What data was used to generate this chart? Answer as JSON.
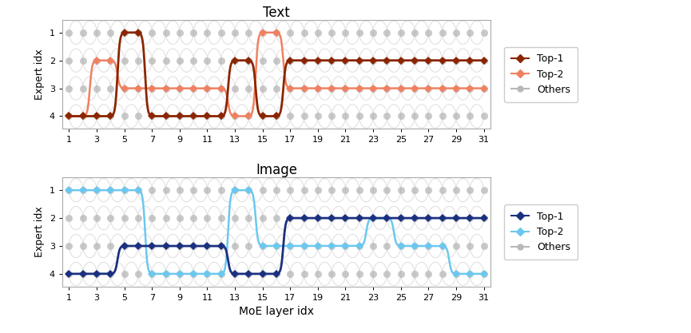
{
  "layers": [
    1,
    2,
    3,
    4,
    5,
    6,
    7,
    8,
    9,
    10,
    11,
    12,
    13,
    14,
    15,
    16,
    17,
    18,
    19,
    20,
    21,
    22,
    23,
    24,
    25,
    26,
    27,
    28,
    29,
    30,
    31
  ],
  "text_top1": [
    4,
    4,
    4,
    4,
    1,
    1,
    4,
    4,
    4,
    4,
    4,
    4,
    2,
    2,
    4,
    4,
    2,
    2,
    2,
    2,
    2,
    2,
    2,
    2,
    2,
    2,
    2,
    2,
    2,
    2,
    2
  ],
  "text_top2": [
    4,
    4,
    2,
    2,
    3,
    3,
    3,
    3,
    3,
    3,
    3,
    3,
    4,
    4,
    1,
    1,
    3,
    3,
    3,
    3,
    3,
    3,
    3,
    3,
    3,
    3,
    3,
    3,
    3,
    3,
    3
  ],
  "img_top1": [
    4,
    4,
    4,
    4,
    3,
    3,
    3,
    3,
    3,
    3,
    3,
    3,
    4,
    4,
    4,
    4,
    2,
    2,
    2,
    2,
    2,
    2,
    2,
    2,
    2,
    2,
    2,
    2,
    2,
    2,
    2
  ],
  "img_top2": [
    1,
    1,
    1,
    1,
    1,
    1,
    4,
    4,
    4,
    4,
    4,
    4,
    1,
    1,
    3,
    3,
    3,
    3,
    3,
    3,
    3,
    3,
    2,
    2,
    3,
    3,
    3,
    3,
    4,
    4,
    4
  ],
  "text_top1_color": "#8B2500",
  "text_top2_color": "#F08060",
  "img_top1_color": "#1a3080",
  "img_top2_color": "#6ac8f0",
  "others_circle_color": "#b8b8b8",
  "others_line_color": "#c8c8c8",
  "xticks": [
    1,
    3,
    5,
    7,
    9,
    11,
    13,
    15,
    17,
    19,
    21,
    23,
    25,
    27,
    29,
    31
  ],
  "ylim_min": 0.55,
  "ylim_max": 4.45,
  "figsize": [
    8.65,
    4.17
  ],
  "dpi": 100
}
